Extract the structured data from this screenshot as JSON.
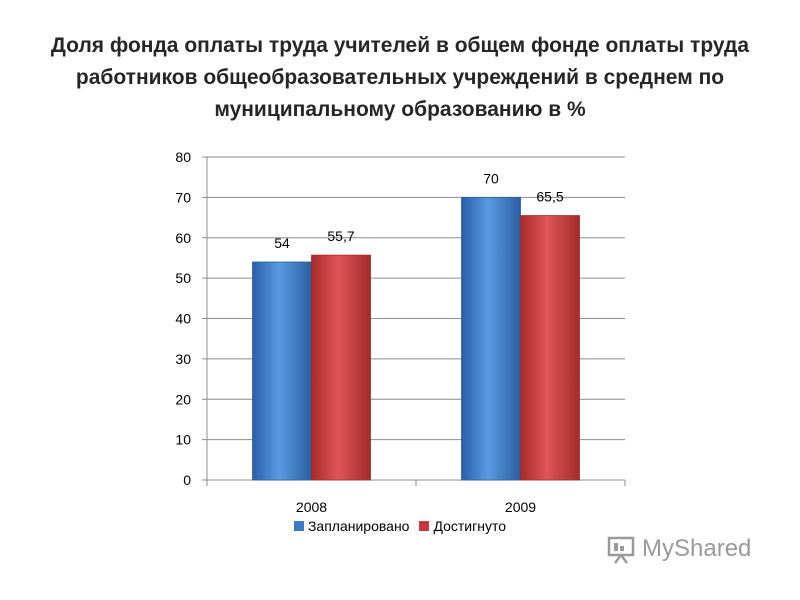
{
  "title": "Доля фонда оплаты труда учителей в общем фонде оплаты труда работников общеобразовательных учреждений в среднем по муниципальному образованию в %",
  "chart_data": {
    "type": "bar",
    "categories": [
      "2008",
      "2009"
    ],
    "series": [
      {
        "name": "Запланировано",
        "values": [
          54,
          70
        ],
        "labels": [
          "54",
          "70"
        ],
        "color": "#3a78c8"
      },
      {
        "name": "Достигнуто",
        "values": [
          55.7,
          65.5
        ],
        "labels": [
          "55,7",
          "65,5"
        ],
        "color": "#c83a3a"
      }
    ],
    "ylim": [
      0,
      80
    ],
    "yticks": [
      "0",
      "10",
      "20",
      "30",
      "40",
      "50",
      "60",
      "70",
      "80"
    ],
    "grid": true,
    "legend_position": "bottom"
  },
  "watermark": {
    "text": "MyShared",
    "icon": "presentation-board-icon"
  }
}
